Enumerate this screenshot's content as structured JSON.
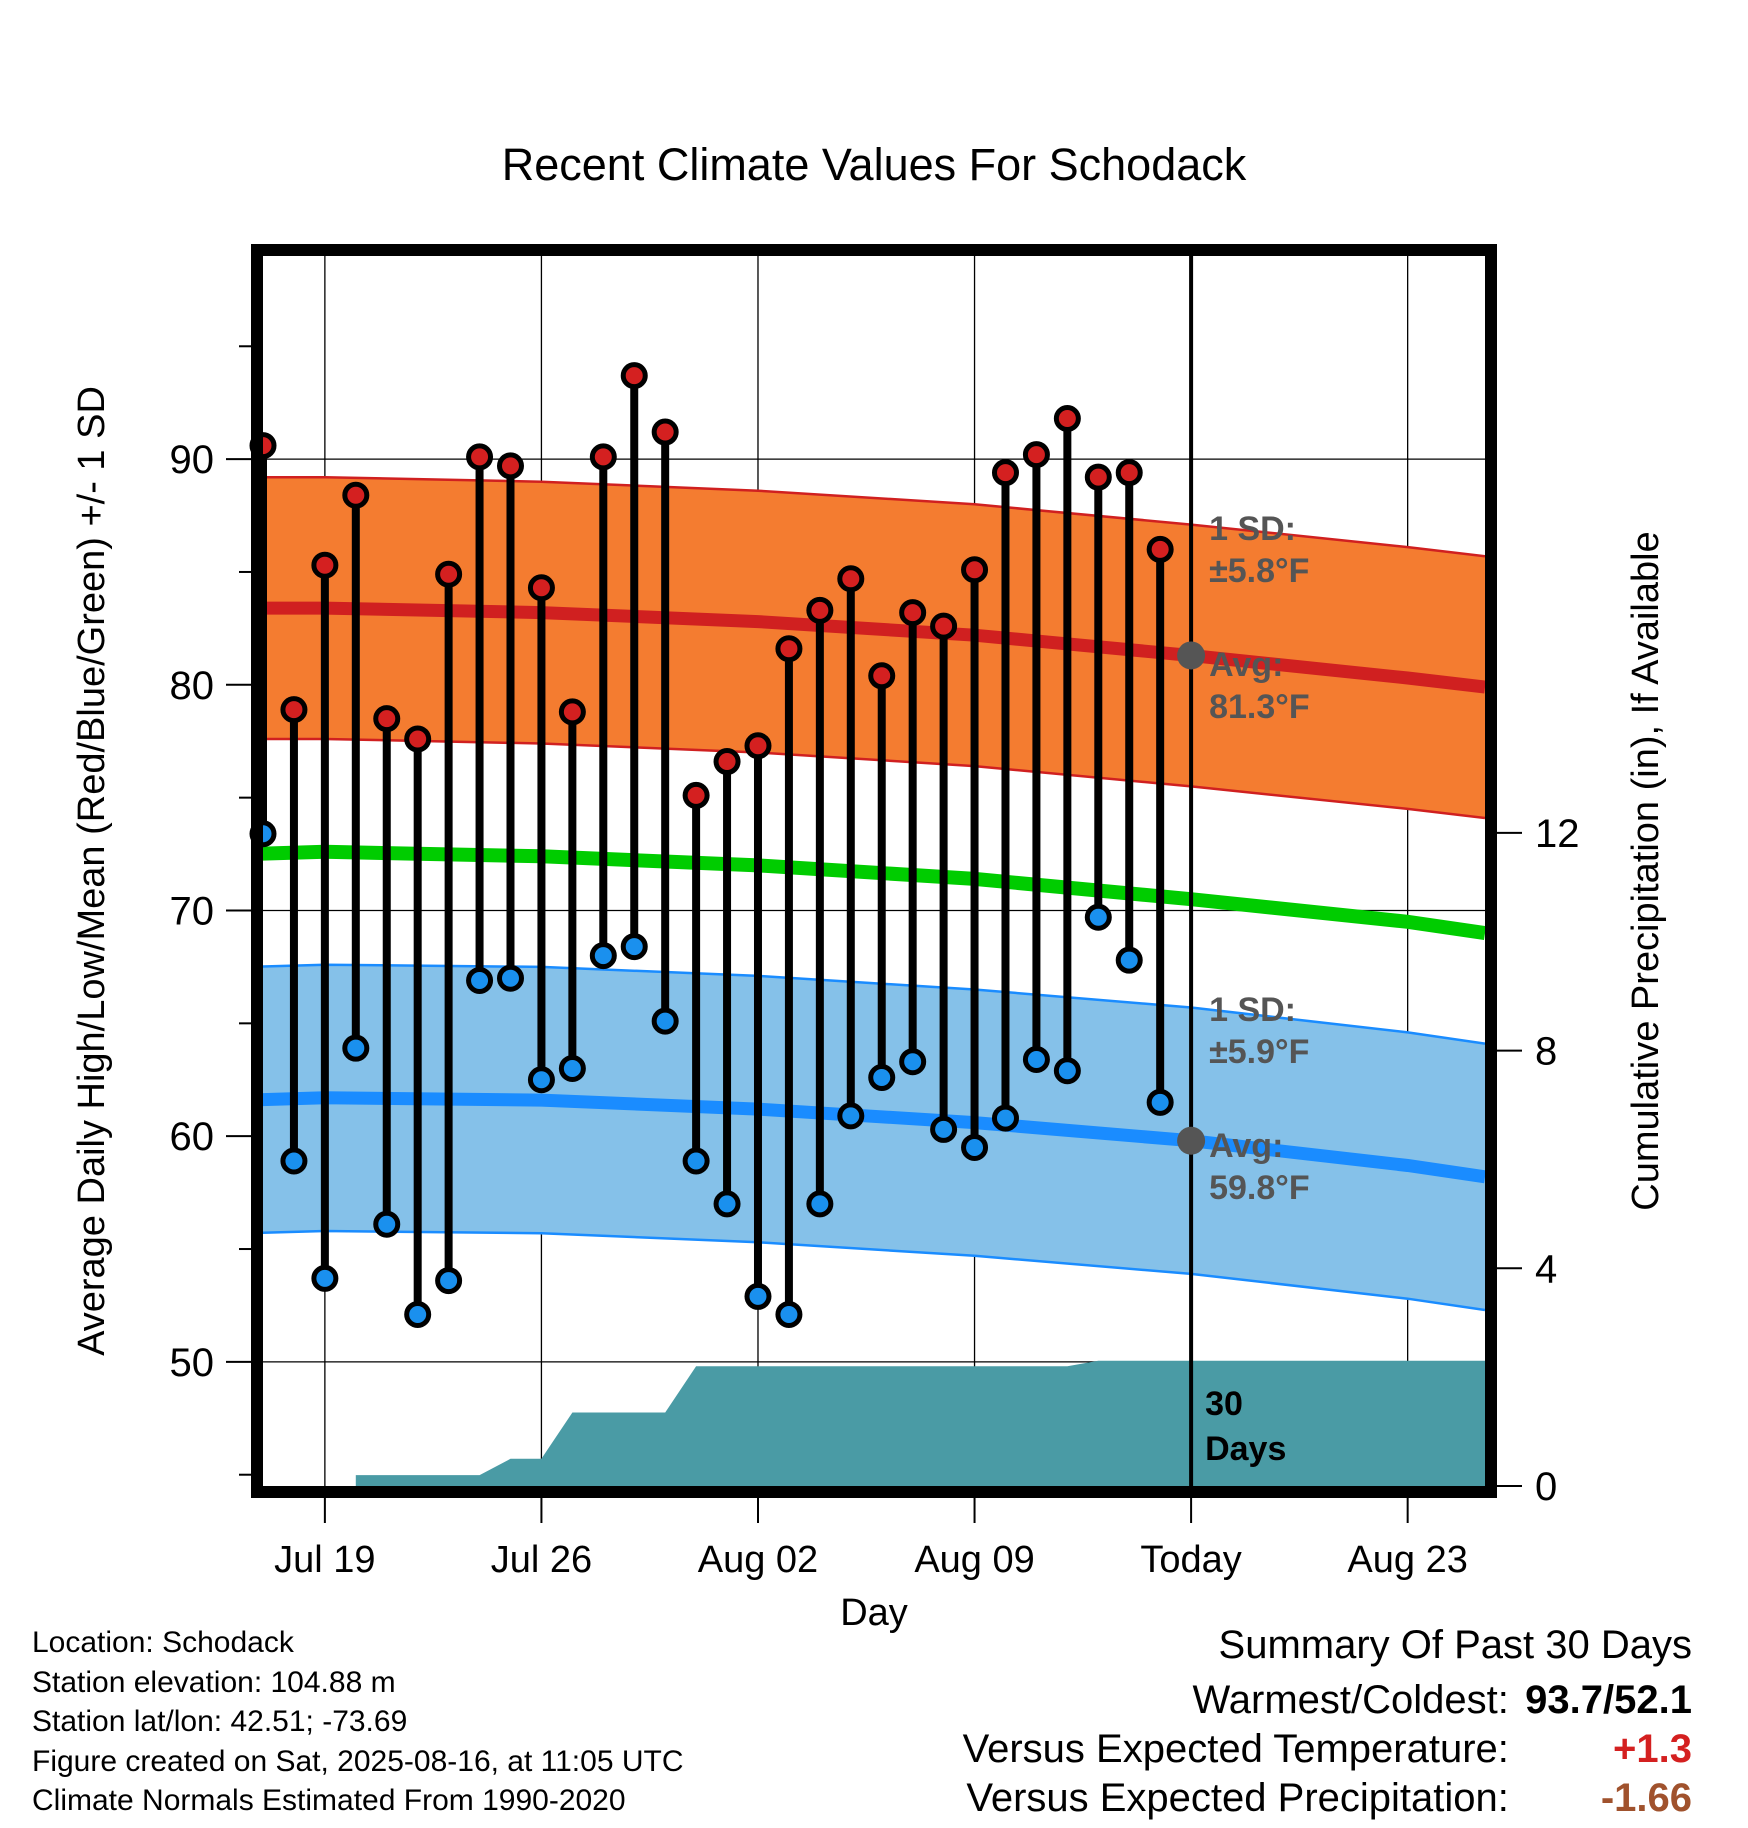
{
  "title": "Recent Climate Values For Schodack",
  "xlabel": "Day",
  "ylabel_left": "Average Daily High/Low/Mean (Red/Blue/Green) +/- 1 SD",
  "ylabel_right": "Cumulative Precipitation (in), If Available",
  "chart_data": {
    "type": "line",
    "x_unit": "day index (0 = Jul 19, 2025)",
    "x_range": [
      -2,
      37.5
    ],
    "y_range_left": [
      44.5,
      99
    ],
    "y_range_right": [
      0,
      22.6
    ],
    "grid": true,
    "left_ticks": [
      50,
      60,
      70,
      80,
      90
    ],
    "right_ticks": [
      0,
      4,
      8,
      12
    ],
    "x_ticks": [
      {
        "day": 0,
        "label": "Jul 19"
      },
      {
        "day": 7,
        "label": "Jul 26"
      },
      {
        "day": 14,
        "label": "Aug 02"
      },
      {
        "day": 21,
        "label": "Aug 09"
      },
      {
        "day": 28,
        "label": "Today"
      },
      {
        "day": 35,
        "label": "Aug 23"
      }
    ],
    "today_day": 28,
    "days": [
      -2,
      -1,
      0,
      1,
      2,
      3,
      4,
      5,
      6,
      7,
      8,
      9,
      10,
      11,
      12,
      13,
      14,
      15,
      16,
      17,
      18,
      19,
      20,
      21,
      22,
      23,
      24,
      25,
      26,
      27
    ],
    "highs": [
      90.6,
      78.9,
      85.3,
      88.4,
      78.5,
      77.6,
      84.9,
      90.1,
      89.7,
      84.3,
      78.8,
      90.1,
      93.7,
      91.2,
      75.1,
      76.6,
      77.3,
      81.6,
      83.3,
      84.7,
      80.4,
      83.2,
      82.6,
      85.1,
      89.4,
      90.2,
      91.8,
      89.2,
      89.4,
      86.0
    ],
    "lows": [
      73.4,
      58.9,
      53.7,
      63.9,
      56.1,
      52.1,
      53.6,
      66.9,
      67.0,
      62.5,
      63.0,
      68.0,
      68.4,
      65.1,
      58.9,
      57.0,
      52.9,
      52.1,
      57.0,
      60.9,
      62.6,
      63.3,
      60.3,
      59.5,
      60.8,
      63.4,
      62.9,
      69.7,
      67.8,
      61.5
    ],
    "normal_high": {
      "points": [
        [
          -2.5,
          83.4
        ],
        [
          0,
          83.4
        ],
        [
          7,
          83.2
        ],
        [
          14,
          82.8
        ],
        [
          21,
          82.2
        ],
        [
          28,
          81.3
        ],
        [
          35,
          80.3
        ],
        [
          37.5,
          79.9
        ]
      ],
      "sd": 5.8,
      "color": "#d02020",
      "band_color": "#f47c30"
    },
    "normal_mean": {
      "points": [
        [
          -2.5,
          72.5
        ],
        [
          0,
          72.6
        ],
        [
          7,
          72.4
        ],
        [
          14,
          72.0
        ],
        [
          21,
          71.4
        ],
        [
          28,
          70.5
        ],
        [
          35,
          69.5
        ],
        [
          37.5,
          69.0
        ]
      ],
      "color": "#00cc00"
    },
    "normal_low": {
      "points": [
        [
          -2.5,
          61.6
        ],
        [
          0,
          61.7
        ],
        [
          7,
          61.6
        ],
        [
          14,
          61.2
        ],
        [
          21,
          60.6
        ],
        [
          28,
          59.8
        ],
        [
          35,
          58.7
        ],
        [
          37.5,
          58.2
        ]
      ],
      "sd": 5.9,
      "color": "#1a8cff",
      "band_color": "#85c1e9"
    },
    "cumulative_precip": {
      "color": "#4a9ba5",
      "points": [
        [
          -2.5,
          0
        ],
        [
          1,
          0
        ],
        [
          1,
          0.2
        ],
        [
          5,
          0.2
        ],
        [
          6,
          0.5
        ],
        [
          7,
          0.5
        ],
        [
          8,
          1.35
        ],
        [
          11,
          1.35
        ],
        [
          12,
          2.2
        ],
        [
          24,
          2.2
        ],
        [
          25,
          2.3
        ],
        [
          37.5,
          2.3
        ]
      ],
      "label_value": "30",
      "label_unit": "Days"
    },
    "annotations": {
      "high_sd": {
        "line1": "1 SD:",
        "line2": "±5.8°F"
      },
      "high_avg": {
        "line1": "Avg:",
        "line2": "81.3°F"
      },
      "low_sd": {
        "line1": "1 SD:",
        "line2": "±5.9°F"
      },
      "low_avg": {
        "line1": "Avg:",
        "line2": "59.8°F"
      }
    },
    "colors": {
      "high_marker": "#d42020",
      "low_marker": "#1a90ee",
      "today_marker": "#555555",
      "annotation_text": "#555555"
    }
  },
  "footer": {
    "location": "Location: Schodack",
    "elevation": "Station elevation: 104.88 m",
    "latlon": "Station lat/lon: 42.51; -73.69",
    "created": "Figure created on Sat, 2025-08-16, at 11:05 UTC",
    "normals": "Climate Normals Estimated From 1990-2020"
  },
  "summary": {
    "heading": "Summary Of Past 30 Days",
    "warmest_coldest_label": "Warmest/Coldest:",
    "warmest_coldest_value": "93.7/52.1",
    "temp_label": "Versus Expected Temperature:",
    "temp_value": "+1.3",
    "temp_color": "#d42020",
    "precip_label": "Versus Expected Precipitation:",
    "precip_value": "-1.66",
    "precip_color": "#a0522d"
  }
}
